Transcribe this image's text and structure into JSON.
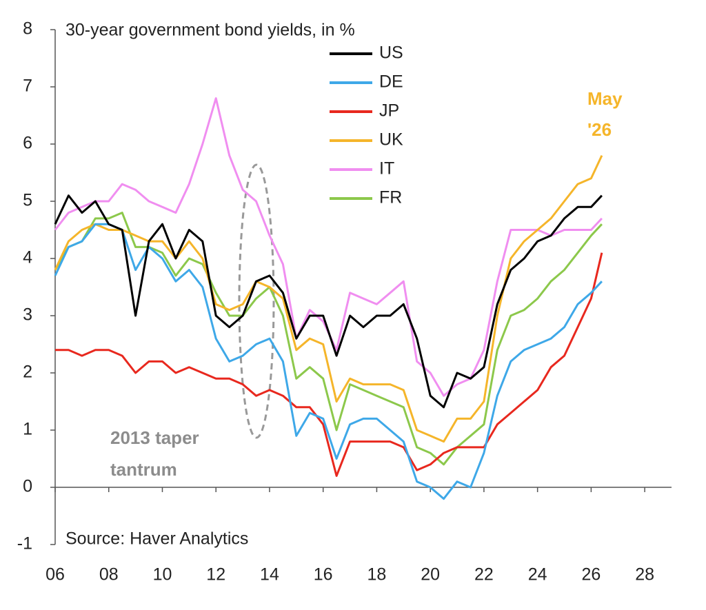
{
  "chart_data": {
    "type": "line",
    "title": "30-year government bond yields, in %",
    "source": "Source: Haver Analytics",
    "x": [
      6,
      6.5,
      7,
      7.5,
      8,
      8.5,
      9,
      9.5,
      10,
      10.5,
      11,
      11.5,
      12,
      12.5,
      13,
      13.5,
      14,
      14.5,
      15,
      15.5,
      16,
      16.5,
      17,
      17.5,
      18,
      18.5,
      19,
      19.5,
      20,
      20.5,
      21,
      21.5,
      22,
      22.5,
      23,
      23.5,
      24,
      24.5,
      25,
      25.5,
      26,
      26.4
    ],
    "series": [
      {
        "name": "US",
        "color": "#000000",
        "values": [
          4.6,
          5.1,
          4.8,
          5.0,
          4.6,
          4.5,
          3.0,
          4.3,
          4.6,
          4.0,
          4.5,
          4.3,
          3.0,
          2.8,
          3.0,
          3.6,
          3.7,
          3.4,
          2.6,
          3.0,
          3.0,
          2.3,
          3.0,
          2.8,
          3.0,
          3.0,
          3.2,
          2.6,
          1.6,
          1.4,
          2.0,
          1.9,
          2.1,
          3.2,
          3.8,
          4.0,
          4.3,
          4.4,
          4.7,
          4.9,
          4.9,
          5.1
        ]
      },
      {
        "name": "DE",
        "color": "#3ea8e8",
        "values": [
          3.7,
          4.2,
          4.3,
          4.6,
          4.6,
          4.5,
          3.8,
          4.2,
          4.0,
          3.6,
          3.8,
          3.5,
          2.6,
          2.2,
          2.3,
          2.5,
          2.6,
          2.2,
          0.9,
          1.3,
          1.2,
          0.5,
          1.1,
          1.2,
          1.2,
          1.0,
          0.8,
          0.1,
          0.0,
          -0.2,
          0.1,
          0.0,
          0.6,
          1.6,
          2.2,
          2.4,
          2.5,
          2.6,
          2.8,
          3.2,
          3.4,
          3.6
        ]
      },
      {
        "name": "JP",
        "color": "#e8281e",
        "values": [
          2.4,
          2.4,
          2.3,
          2.4,
          2.4,
          2.3,
          2.0,
          2.2,
          2.2,
          2.0,
          2.1,
          2.0,
          1.9,
          1.9,
          1.8,
          1.6,
          1.7,
          1.6,
          1.4,
          1.4,
          1.1,
          0.2,
          0.8,
          0.8,
          0.8,
          0.8,
          0.7,
          0.3,
          0.4,
          0.6,
          0.7,
          0.7,
          0.7,
          1.1,
          1.3,
          1.5,
          1.7,
          2.1,
          2.3,
          2.8,
          3.3,
          4.1
        ]
      },
      {
        "name": "UK",
        "color": "#f5b52a",
        "values": [
          3.8,
          4.3,
          4.5,
          4.6,
          4.5,
          4.5,
          4.4,
          4.3,
          4.3,
          4.0,
          4.3,
          4.0,
          3.2,
          3.1,
          3.2,
          3.6,
          3.5,
          3.3,
          2.4,
          2.6,
          2.5,
          1.5,
          1.9,
          1.8,
          1.8,
          1.8,
          1.7,
          1.0,
          0.9,
          0.8,
          1.2,
          1.2,
          1.5,
          3.0,
          4.0,
          4.3,
          4.5,
          4.7,
          5.0,
          5.3,
          5.4,
          5.8
        ]
      },
      {
        "name": "IT",
        "color": "#f08ef0",
        "values": [
          4.5,
          4.8,
          4.9,
          5.0,
          5.0,
          5.3,
          5.2,
          5.0,
          4.9,
          4.8,
          5.3,
          6.0,
          6.8,
          5.8,
          5.2,
          5.0,
          4.4,
          3.9,
          2.6,
          3.1,
          2.9,
          2.4,
          3.4,
          3.3,
          3.2,
          3.4,
          3.6,
          2.2,
          2.0,
          1.6,
          1.8,
          1.9,
          2.4,
          3.6,
          4.5,
          4.5,
          4.5,
          4.4,
          4.5,
          4.5,
          4.5,
          4.7
        ]
      },
      {
        "name": "FR",
        "color": "#8cc84b",
        "values": [
          3.8,
          4.2,
          4.3,
          4.7,
          4.7,
          4.8,
          4.2,
          4.2,
          4.1,
          3.7,
          4.0,
          3.9,
          3.4,
          3.0,
          3.0,
          3.3,
          3.5,
          3.0,
          1.9,
          2.1,
          1.9,
          1.0,
          1.8,
          1.7,
          1.6,
          1.5,
          1.4,
          0.7,
          0.6,
          0.4,
          0.7,
          0.9,
          1.1,
          2.4,
          3.0,
          3.1,
          3.3,
          3.6,
          3.8,
          4.1,
          4.4,
          4.6
        ]
      }
    ],
    "xlim": [
      6,
      29
    ],
    "xticks": [
      {
        "value": 6,
        "label": "06"
      },
      {
        "value": 8,
        "label": "08"
      },
      10,
      12,
      14,
      16,
      18,
      20,
      22,
      24,
      26,
      28
    ],
    "ylim": [
      -1,
      8
    ],
    "yticks": [
      -1,
      0,
      1,
      2,
      3,
      4,
      5,
      6,
      7,
      8
    ],
    "grid": false,
    "legend": "top-center",
    "annotations": [
      {
        "lines": [
          "May",
          "'26"
        ],
        "color": "#f5b52a"
      },
      {
        "lines": [
          "2013 taper",
          "tantrum"
        ],
        "color": "#8c8c8c"
      }
    ]
  }
}
